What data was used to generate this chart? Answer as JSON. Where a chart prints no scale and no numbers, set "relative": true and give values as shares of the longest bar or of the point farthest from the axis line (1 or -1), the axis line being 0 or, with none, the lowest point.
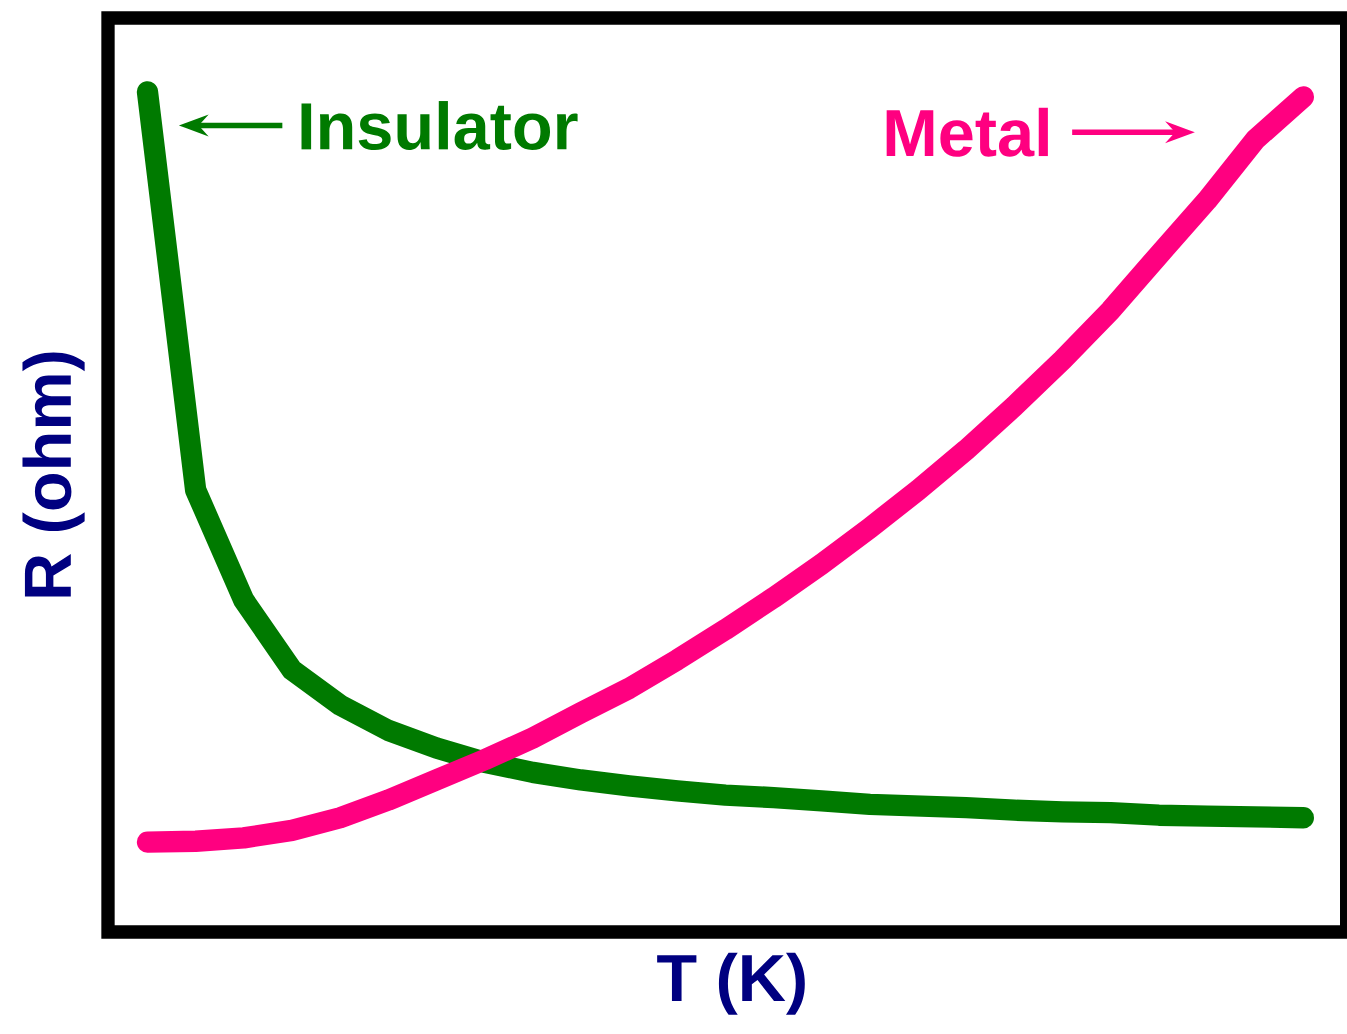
{
  "chart_data": {
    "type": "line",
    "relative": true,
    "xlabel": "T (K)",
    "ylabel": "R (ohm)",
    "categories": [
      null,
      null,
      null,
      null,
      null,
      null,
      null,
      null,
      null,
      null,
      null,
      null,
      null,
      null,
      null,
      null,
      null,
      null,
      null,
      null,
      null,
      null,
      null,
      null,
      null
    ],
    "series": [
      {
        "name": "Insulator",
        "color": "#007a00",
        "values": [
          1.0,
          0.526,
          0.395,
          0.312,
          0.27,
          0.24,
          0.219,
          0.202,
          0.19,
          0.181,
          0.174,
          0.168,
          0.163,
          0.16,
          0.156,
          0.152,
          0.15,
          0.148,
          0.145,
          0.143,
          0.142,
          0.139,
          0.138,
          0.137,
          0.136
        ]
      },
      {
        "name": "Metal",
        "color": "#ff0080",
        "values": [
          0.107,
          0.108,
          0.112,
          0.121,
          0.136,
          0.157,
          0.181,
          0.205,
          0.231,
          0.261,
          0.29,
          0.324,
          0.36,
          0.398,
          0.438,
          0.481,
          0.526,
          0.574,
          0.626,
          0.681,
          0.74,
          0.806,
          0.871,
          0.943,
          0.994
        ]
      }
    ]
  }
}
